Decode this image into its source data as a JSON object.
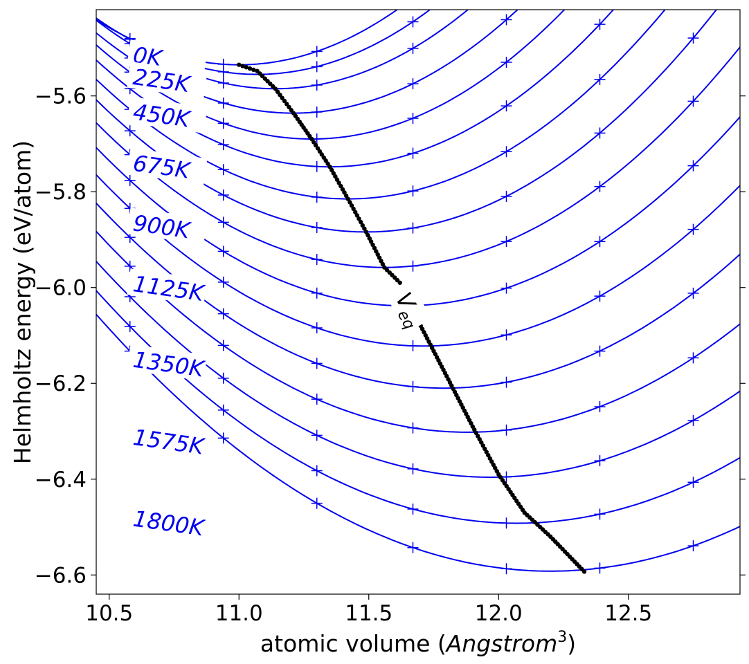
{
  "chart_data": {
    "type": "line",
    "xlabel": "atomic volume (",
    "xlabel_italic": "Angstrom",
    "xlabel_sup": "3",
    "xlabel_close": ")",
    "ylabel": "Helmholtz energy (eV/atom)",
    "xlim": [
      10.45,
      12.93
    ],
    "ylim": [
      -6.64,
      -5.42
    ],
    "xticks": [
      10.5,
      11.0,
      11.5,
      12.0,
      12.5
    ],
    "xtick_labels": [
      "10.5",
      "11.0",
      "11.5",
      "12.0",
      "12.5"
    ],
    "yticks": [
      -5.6,
      -5.8,
      -6.0,
      -6.2,
      -6.4,
      -6.6
    ],
    "ytick_labels": [
      "−5.6",
      "−5.8",
      "−6.0",
      "−6.2",
      "−6.4",
      "−6.6"
    ],
    "curve_color": "#0000ee",
    "marker_color": "#0000ee",
    "eq_color": "#000000",
    "sample_volumes": [
      10.58,
      10.94,
      11.3,
      11.67,
      12.03,
      12.39,
      12.75
    ],
    "curves": [
      {
        "T": 0,
        "label": "0K",
        "F0": -5.535,
        "V0": 11.0,
        "k": 0.31
      },
      {
        "T": 112.5,
        "label": "",
        "F0": -5.555,
        "V0": 11.07,
        "k": 0.305
      },
      {
        "T": 225,
        "label": "225K",
        "F0": -5.585,
        "V0": 11.14,
        "k": 0.3
      },
      {
        "T": 337.5,
        "label": "",
        "F0": -5.636,
        "V0": 11.21,
        "k": 0.29
      },
      {
        "T": 450,
        "label": "450K",
        "F0": -5.69,
        "V0": 11.28,
        "k": 0.285
      },
      {
        "T": 562.5,
        "label": "",
        "F0": -5.748,
        "V0": 11.35,
        "k": 0.275
      },
      {
        "T": 675,
        "label": "675K",
        "F0": -5.815,
        "V0": 11.42,
        "k": 0.265
      },
      {
        "T": 787.5,
        "label": "",
        "F0": -5.884,
        "V0": 11.49,
        "k": 0.255
      },
      {
        "T": 900,
        "label": "900K",
        "F0": -5.958,
        "V0": 11.56,
        "k": 0.245
      },
      {
        "T": 1012.5,
        "label": "",
        "F0": -6.038,
        "V0": 11.635,
        "k": 0.235
      },
      {
        "T": 1125,
        "label": "1125K",
        "F0": -6.122,
        "V0": 11.71,
        "k": 0.225
      },
      {
        "T": 1237.5,
        "label": "",
        "F0": -6.21,
        "V0": 11.79,
        "k": 0.215
      },
      {
        "T": 1350,
        "label": "1350K",
        "F0": -6.302,
        "V0": 11.88,
        "k": 0.205
      },
      {
        "T": 1462.5,
        "label": "",
        "F0": -6.396,
        "V0": 11.97,
        "k": 0.195
      },
      {
        "T": 1575,
        "label": "1575K",
        "F0": -6.492,
        "V0": 12.07,
        "k": 0.185
      },
      {
        "T": 1687.5,
        "label": "",
        "F0": -6.592,
        "V0": 12.2,
        "k": 0.175
      }
    ],
    "curve_labels": [
      {
        "text": "0K",
        "x": 10.72,
        "y": -5.522
      },
      {
        "text": "225K",
        "x": 10.72,
        "y": -5.568
      },
      {
        "text": "450K",
        "x": 10.72,
        "y": -5.641
      },
      {
        "text": "675K",
        "x": 10.72,
        "y": -5.748
      },
      {
        "text": "900K",
        "x": 10.72,
        "y": -5.873
      },
      {
        "text": "1125K",
        "x": 10.72,
        "y": -6.0
      },
      {
        "text": "1350K",
        "x": 10.72,
        "y": -6.158
      },
      {
        "text": "1575K",
        "x": 10.72,
        "y": -6.32
      },
      {
        "text": "1800K",
        "x": 10.72,
        "y": -6.49
      }
    ],
    "eq_label": {
      "text": "V",
      "sub": "eq",
      "x": 11.65,
      "y": -6.04
    },
    "eq_path": {
      "x": [
        11.0,
        11.07,
        11.14,
        11.21,
        11.28,
        11.35,
        11.42,
        11.49,
        11.56,
        11.62,
        11.7,
        11.8,
        11.9,
        12.0,
        12.1,
        12.2,
        12.33
      ],
      "y": [
        -5.535,
        -5.548,
        -5.585,
        -5.636,
        -5.69,
        -5.748,
        -5.815,
        -5.884,
        -5.958,
        -5.99,
        -6.08,
        -6.185,
        -6.29,
        -6.39,
        -6.47,
        -6.52,
        -6.593
      ],
      "gap": [
        11.62,
        11.7
      ]
    }
  }
}
